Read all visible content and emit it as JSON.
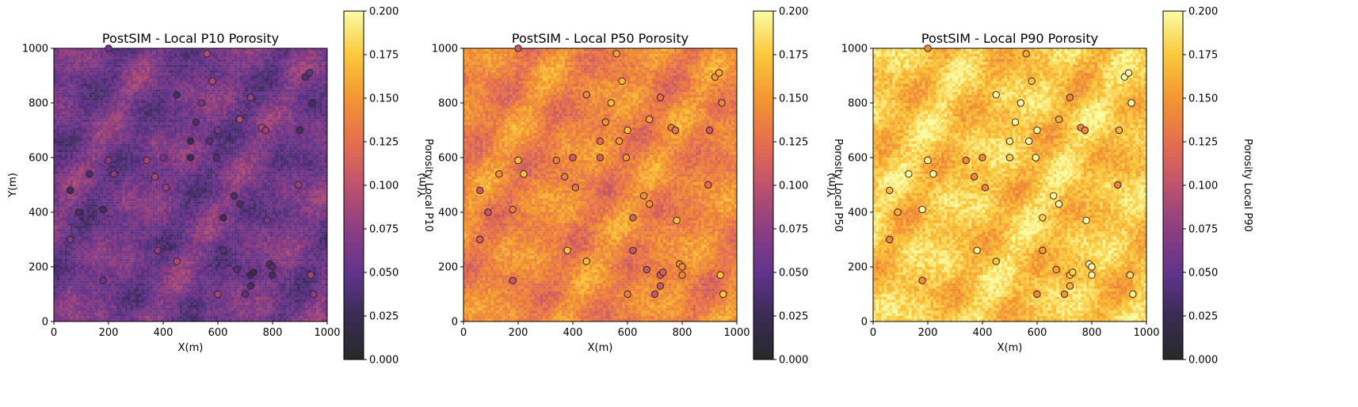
{
  "chart_data": [
    {
      "type": "heatmap",
      "title": "PostSIM - Local P10 Porosity",
      "xlabel": "X(m)",
      "ylabel": "Y(m)",
      "xlim": [
        0,
        1000
      ],
      "ylim": [
        0,
        1000
      ],
      "x_ticks": [
        "0",
        "200",
        "400",
        "600",
        "800",
        "1000"
      ],
      "y_ticks": [
        "0",
        "200",
        "400",
        "600",
        "800",
        "1000"
      ],
      "colorbar": {
        "label": "Porosity Local P10",
        "range": [
          0.0,
          0.2
        ],
        "ticks": [
          "0.000",
          "0.025",
          "0.050",
          "0.075",
          "0.100",
          "0.125",
          "0.150",
          "0.175",
          "0.200"
        ],
        "colormap": "inferno"
      },
      "field": {
        "grid": [
          100,
          100
        ],
        "level": 0.06
      },
      "grid": false
    },
    {
      "type": "heatmap",
      "title": "PostSIM - Local P50 Porosity",
      "xlabel": "X(m)",
      "ylabel": "Y(m)",
      "xlim": [
        0,
        1000
      ],
      "ylim": [
        0,
        1000
      ],
      "x_ticks": [
        "0",
        "200",
        "400",
        "600",
        "800",
        "1000"
      ],
      "y_ticks": [
        "0",
        "200",
        "400",
        "600",
        "800",
        "1000"
      ],
      "colorbar": {
        "label": "Porosity Local P50",
        "range": [
          0.0,
          0.2
        ],
        "ticks": [
          "0.000",
          "0.025",
          "0.050",
          "0.075",
          "0.100",
          "0.125",
          "0.150",
          "0.175",
          "0.200"
        ],
        "colormap": "inferno"
      },
      "field": {
        "grid": [
          100,
          100
        ],
        "level": 0.14
      },
      "grid": false
    },
    {
      "type": "heatmap",
      "title": "PostSIM - Local P90 Porosity",
      "xlabel": "X(m)",
      "ylabel": "Y(m)",
      "xlim": [
        0,
        1000
      ],
      "ylim": [
        0,
        1000
      ],
      "x_ticks": [
        "0",
        "200",
        "400",
        "600",
        "800",
        "1000"
      ],
      "y_ticks": [
        "0",
        "200",
        "400",
        "600",
        "800",
        "1000"
      ],
      "colorbar": {
        "label": "Porosity Local P90",
        "range": [
          0.0,
          0.2
        ],
        "ticks": [
          "0.000",
          "0.025",
          "0.050",
          "0.075",
          "0.100",
          "0.125",
          "0.150",
          "0.175",
          "0.200"
        ],
        "colormap": "inferno"
      },
      "field": {
        "grid": [
          100,
          100
        ],
        "level": 0.175
      },
      "grid": false
    }
  ],
  "wells": [
    {
      "x": 200,
      "y": 1000
    },
    {
      "x": 560,
      "y": 980
    },
    {
      "x": 580,
      "y": 880
    },
    {
      "x": 920,
      "y": 895
    },
    {
      "x": 935,
      "y": 910
    },
    {
      "x": 450,
      "y": 830
    },
    {
      "x": 720,
      "y": 820
    },
    {
      "x": 540,
      "y": 800
    },
    {
      "x": 945,
      "y": 800
    },
    {
      "x": 520,
      "y": 730
    },
    {
      "x": 680,
      "y": 740
    },
    {
      "x": 760,
      "y": 710
    },
    {
      "x": 775,
      "y": 700
    },
    {
      "x": 600,
      "y": 700
    },
    {
      "x": 900,
      "y": 700
    },
    {
      "x": 500,
      "y": 660
    },
    {
      "x": 570,
      "y": 660
    },
    {
      "x": 200,
      "y": 590
    },
    {
      "x": 340,
      "y": 590
    },
    {
      "x": 400,
      "y": 600
    },
    {
      "x": 500,
      "y": 600
    },
    {
      "x": 595,
      "y": 600
    },
    {
      "x": 130,
      "y": 540
    },
    {
      "x": 220,
      "y": 540
    },
    {
      "x": 370,
      "y": 530
    },
    {
      "x": 410,
      "y": 490
    },
    {
      "x": 60,
      "y": 480
    },
    {
      "x": 895,
      "y": 500
    },
    {
      "x": 660,
      "y": 460
    },
    {
      "x": 680,
      "y": 430
    },
    {
      "x": 90,
      "y": 400
    },
    {
      "x": 180,
      "y": 410
    },
    {
      "x": 620,
      "y": 380
    },
    {
      "x": 780,
      "y": 370
    },
    {
      "x": 60,
      "y": 300
    },
    {
      "x": 380,
      "y": 260
    },
    {
      "x": 620,
      "y": 260
    },
    {
      "x": 450,
      "y": 220
    },
    {
      "x": 790,
      "y": 210
    },
    {
      "x": 800,
      "y": 200
    },
    {
      "x": 670,
      "y": 190
    },
    {
      "x": 720,
      "y": 170
    },
    {
      "x": 730,
      "y": 180
    },
    {
      "x": 800,
      "y": 170
    },
    {
      "x": 940,
      "y": 170
    },
    {
      "x": 180,
      "y": 150
    },
    {
      "x": 720,
      "y": 130
    },
    {
      "x": 600,
      "y": 100
    },
    {
      "x": 700,
      "y": 100
    },
    {
      "x": 950,
      "y": 100
    }
  ]
}
